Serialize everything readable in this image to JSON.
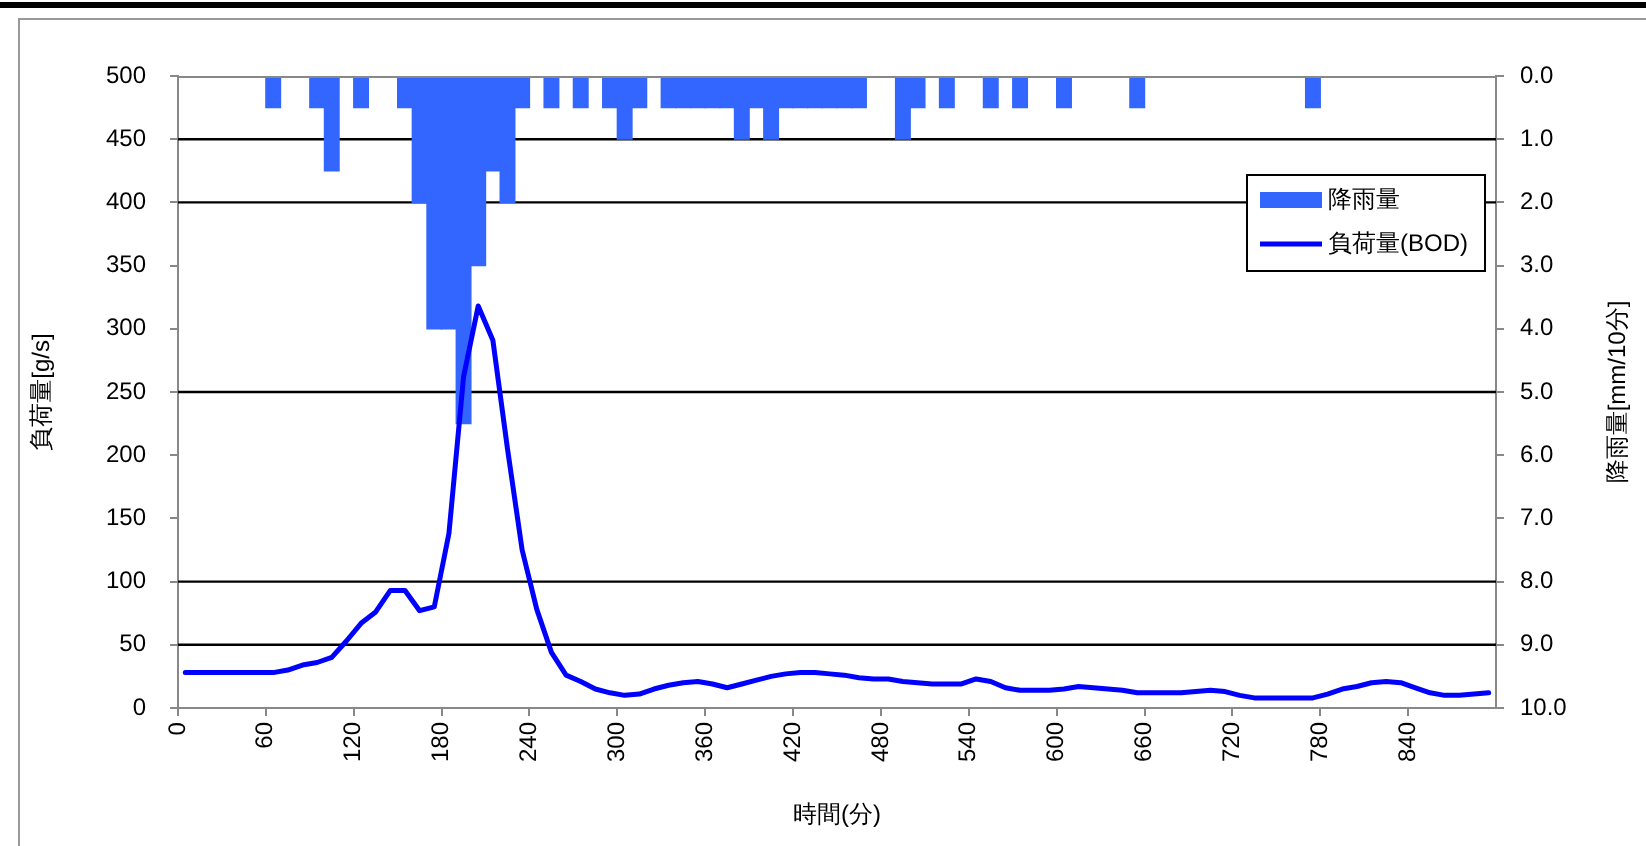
{
  "chart_data": {
    "type": "line",
    "xlabel": "時間(分)",
    "ylabel": "負荷量[g/s]",
    "y2label": "降雨量[mm/10分]",
    "xlim": [
      0,
      900
    ],
    "xticks": [
      0,
      60,
      120,
      180,
      240,
      300,
      360,
      420,
      480,
      540,
      600,
      660,
      720,
      780,
      840
    ],
    "ylim": [
      0,
      500
    ],
    "yticks": [
      0,
      50,
      100,
      150,
      200,
      250,
      300,
      350,
      400,
      450,
      500
    ],
    "y2lim": [
      10,
      0
    ],
    "y2ticks": [
      {
        "value": 0,
        "label": "0.0"
      },
      {
        "value": 1,
        "label": "1.0"
      },
      {
        "value": 2,
        "label": "2.0"
      },
      {
        "value": 3,
        "label": "3.0"
      },
      {
        "value": 4,
        "label": "4.0"
      },
      {
        "value": 5,
        "label": "5.0"
      },
      {
        "value": 6,
        "label": "6.0"
      },
      {
        "value": 7,
        "label": "7.0"
      },
      {
        "value": 8,
        "label": "8.0"
      },
      {
        "value": 9,
        "label": "9.0"
      },
      {
        "value": 10,
        "label": "10.0"
      }
    ],
    "series": [
      {
        "name": "降雨量",
        "type": "bar",
        "axis": "y2",
        "color": "#3366ff",
        "x": [
          65,
          95,
          105,
          125,
          155,
          165,
          175,
          185,
          195,
          205,
          215,
          225,
          235,
          255,
          275,
          295,
          305,
          315,
          335,
          345,
          355,
          365,
          375,
          385,
          395,
          405,
          415,
          425,
          435,
          445,
          455,
          465,
          495,
          505,
          525,
          555,
          575,
          605,
          655,
          775
        ],
        "values": [
          0.5,
          0.5,
          1.5,
          0.5,
          0.5,
          2.0,
          4.0,
          4.0,
          5.5,
          3.0,
          1.5,
          2.0,
          0.5,
          0.5,
          0.5,
          0.5,
          1.0,
          0.5,
          0.5,
          0.5,
          0.5,
          0.5,
          0.5,
          1.0,
          0.5,
          1.0,
          0.5,
          0.5,
          0.5,
          0.5,
          0.5,
          0.5,
          1.0,
          0.5,
          0.5,
          0.5,
          0.5,
          0.5,
          0.5,
          0.5
        ]
      },
      {
        "name": "負荷量(BOD)",
        "color": "#0000ff",
        "x": [
          5,
          15,
          25,
          35,
          45,
          55,
          65,
          75,
          85,
          95,
          105,
          115,
          125,
          135,
          145,
          155,
          165,
          175,
          185,
          195,
          205,
          215,
          225,
          235,
          245,
          255,
          265,
          275,
          285,
          295,
          305,
          315,
          325,
          335,
          345,
          355,
          365,
          375,
          385,
          395,
          405,
          415,
          425,
          435,
          445,
          455,
          465,
          475,
          485,
          495,
          505,
          515,
          525,
          535,
          545,
          555,
          565,
          575,
          585,
          595,
          605,
          615,
          625,
          635,
          645,
          655,
          665,
          675,
          685,
          695,
          705,
          715,
          725,
          735,
          745,
          755,
          765,
          775,
          785,
          795,
          805,
          815,
          825,
          835,
          845,
          855,
          865,
          875,
          885,
          895
        ],
        "values": [
          28,
          28,
          28,
          28,
          28,
          28,
          28,
          30,
          34,
          36,
          40,
          53,
          67,
          76,
          93,
          93,
          77,
          80,
          138,
          262,
          318,
          291,
          205,
          125,
          78,
          44,
          26,
          21,
          15,
          12,
          10,
          11,
          15,
          18,
          20,
          21,
          19,
          16,
          19,
          22,
          25,
          27,
          28,
          28,
          27,
          26,
          24,
          23,
          23,
          21,
          20,
          19,
          19,
          19,
          23,
          21,
          16,
          14,
          14,
          14,
          15,
          17,
          16,
          15,
          14,
          12,
          12,
          12,
          12,
          13,
          14,
          13,
          10,
          8,
          8,
          8,
          8,
          8,
          11,
          15,
          17,
          20,
          21,
          20,
          16,
          12,
          10,
          10,
          11,
          12
        ]
      }
    ],
    "ref_lines": [
      {
        "axis": "y",
        "value": 50,
        "color": "#000000"
      },
      {
        "axis": "y",
        "value": 100,
        "color": "#000000"
      },
      {
        "axis": "y",
        "value": 250,
        "color": "#000000"
      },
      {
        "axis": "y",
        "value": 400,
        "color": "#000000"
      },
      {
        "axis": "y",
        "value": 450,
        "color": "#000000"
      }
    ],
    "legend": "top right",
    "marker": "none",
    "line_style": "solid"
  }
}
